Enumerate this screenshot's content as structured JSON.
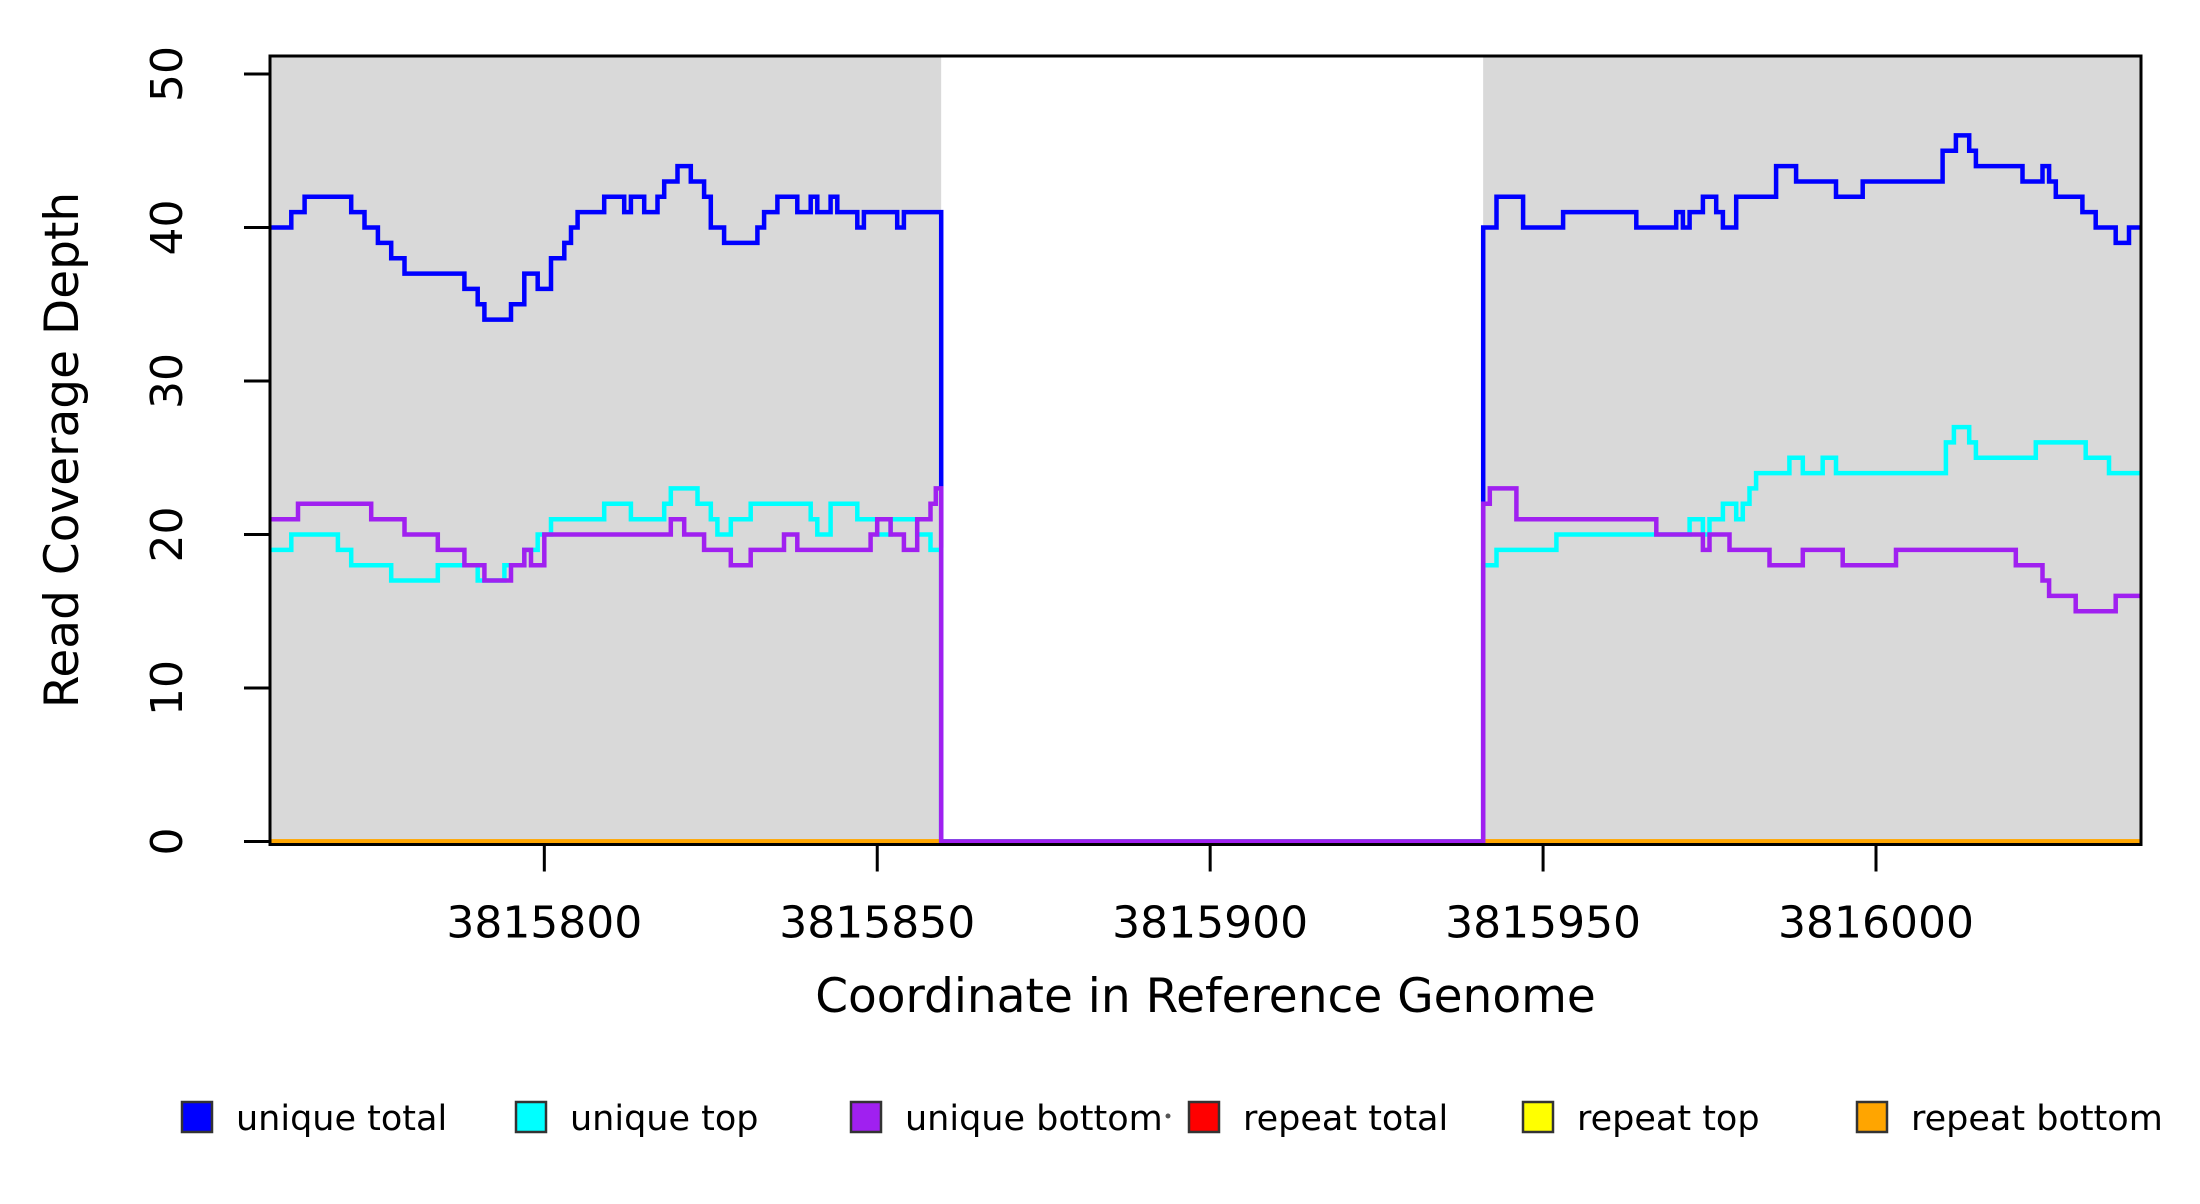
{
  "chart_data": {
    "type": "line",
    "subtype": "step-after",
    "title": "",
    "xlabel": "Coordinate in Reference Genome",
    "ylabel": "Read Coverage Depth",
    "xlim": [
      3815758.8,
      3816039.8
    ],
    "ylim": [
      0,
      50
    ],
    "grid": false,
    "x_ticks": [
      3815800,
      3815850,
      3815900,
      3815950,
      3816000
    ],
    "x_tick_labels": [
      "3815800",
      "3815850",
      "3815900",
      "3815950",
      "3816000"
    ],
    "y_ticks": [
      0,
      10,
      20,
      30,
      40,
      50
    ],
    "y_tick_labels": [
      "0",
      "10",
      "20",
      "30",
      "40",
      "50"
    ],
    "shaded_regions": [
      {
        "x0": 3815758.8,
        "x1": 3815859.6,
        "color": "#D9D9D9"
      },
      {
        "x0": 3815941.0,
        "x1": 3816039.8,
        "color": "#D9D9D9"
      }
    ],
    "gap_region": {
      "x0": 3815859.6,
      "x1": 3815941.0,
      "note": "unique coverage drops to 0 (unshaded repeat interval)"
    },
    "series": [
      {
        "name": "repeat total",
        "color": "#FF0000",
        "steps": [
          [
            3815758.8,
            0
          ]
        ],
        "xend": 3816039.8
      },
      {
        "name": "repeat top",
        "color": "#FFFF00",
        "steps": [
          [
            3815758.8,
            0
          ]
        ],
        "xend": 3816039.8
      },
      {
        "name": "repeat bottom",
        "color": "#FFA500",
        "steps": [
          [
            3815758.8,
            0
          ]
        ],
        "xend": 3816039.8
      },
      {
        "name": "unique total",
        "color": "#0000FF",
        "steps": [
          [
            3815758.8,
            40
          ],
          [
            3815762,
            41
          ],
          [
            3815764,
            42
          ],
          [
            3815771,
            41
          ],
          [
            3815773,
            40
          ],
          [
            3815775,
            39
          ],
          [
            3815777,
            38
          ],
          [
            3815779,
            37
          ],
          [
            3815788,
            36
          ],
          [
            3815790,
            35
          ],
          [
            3815791,
            34
          ],
          [
            3815795,
            35
          ],
          [
            3815797,
            37
          ],
          [
            3815799,
            36
          ],
          [
            3815801,
            38
          ],
          [
            3815803,
            39
          ],
          [
            3815804,
            40
          ],
          [
            3815805,
            41
          ],
          [
            3815809,
            42
          ],
          [
            3815812,
            41
          ],
          [
            3815813,
            42
          ],
          [
            3815815,
            41
          ],
          [
            3815817,
            42
          ],
          [
            3815818,
            43
          ],
          [
            3815820,
            44
          ],
          [
            3815822,
            43
          ],
          [
            3815824,
            42
          ],
          [
            3815825,
            40
          ],
          [
            3815827,
            39
          ],
          [
            3815832,
            40
          ],
          [
            3815833,
            41
          ],
          [
            3815835,
            42
          ],
          [
            3815838,
            41
          ],
          [
            3815840,
            42
          ],
          [
            3815841,
            41
          ],
          [
            3815843,
            42
          ],
          [
            3815844,
            41
          ],
          [
            3815847,
            40
          ],
          [
            3815848,
            41
          ],
          [
            3815853,
            40
          ],
          [
            3815854,
            41
          ],
          [
            3815859.6,
            0
          ],
          [
            3815941,
            40
          ],
          [
            3815943,
            42
          ],
          [
            3815947,
            40
          ],
          [
            3815953,
            41
          ],
          [
            3815964,
            40
          ],
          [
            3815970,
            41
          ],
          [
            3815971,
            40
          ],
          [
            3815972,
            41
          ],
          [
            3815974,
            42
          ],
          [
            3815976,
            41
          ],
          [
            3815977,
            40
          ],
          [
            3815979,
            42
          ],
          [
            3815985,
            44
          ],
          [
            3815988,
            43
          ],
          [
            3815994,
            42
          ],
          [
            3815998,
            43
          ],
          [
            3816010,
            45
          ],
          [
            3816012,
            46
          ],
          [
            3816014,
            45
          ],
          [
            3816015,
            44
          ],
          [
            3816022,
            43
          ],
          [
            3816025,
            44
          ],
          [
            3816026,
            43
          ],
          [
            3816027,
            42
          ],
          [
            3816031,
            41
          ],
          [
            3816033,
            40
          ],
          [
            3816036,
            39
          ],
          [
            3816038,
            40
          ]
        ],
        "xend": 3816039.8
      },
      {
        "name": "unique top",
        "color": "#00FFFF",
        "steps": [
          [
            3815758.8,
            19
          ],
          [
            3815762,
            20
          ],
          [
            3815769,
            19
          ],
          [
            3815771,
            18
          ],
          [
            3815777,
            17
          ],
          [
            3815784,
            18
          ],
          [
            3815790,
            17
          ],
          [
            3815794,
            18
          ],
          [
            3815797,
            19
          ],
          [
            3815799,
            20
          ],
          [
            3815801,
            21
          ],
          [
            3815809,
            22
          ],
          [
            3815813,
            21
          ],
          [
            3815818,
            22
          ],
          [
            3815819,
            23
          ],
          [
            3815823,
            22
          ],
          [
            3815825,
            21
          ],
          [
            3815826,
            20
          ],
          [
            3815828,
            21
          ],
          [
            3815831,
            22
          ],
          [
            3815840,
            21
          ],
          [
            3815841,
            20
          ],
          [
            3815843,
            22
          ],
          [
            3815847,
            21
          ],
          [
            3815850,
            20
          ],
          [
            3815852,
            21
          ],
          [
            3815856,
            20
          ],
          [
            3815858,
            19
          ],
          [
            3815859.6,
            0
          ],
          [
            3815941,
            18
          ],
          [
            3815943,
            19
          ],
          [
            3815952,
            20
          ],
          [
            3815972,
            21
          ],
          [
            3815974,
            20
          ],
          [
            3815975,
            21
          ],
          [
            3815977,
            22
          ],
          [
            3815979,
            21
          ],
          [
            3815980,
            22
          ],
          [
            3815981,
            23
          ],
          [
            3815982,
            24
          ],
          [
            3815987,
            25
          ],
          [
            3815989,
            24
          ],
          [
            3815992,
            25
          ],
          [
            3815994,
            24
          ],
          [
            3816010.5,
            26
          ],
          [
            3816011.7,
            27
          ],
          [
            3816014,
            26
          ],
          [
            3816015,
            25
          ],
          [
            3816024,
            26
          ],
          [
            3816031.5,
            25
          ],
          [
            3816035,
            24
          ]
        ],
        "xend": 3816039.8
      },
      {
        "name": "unique bottom",
        "color": "#A020F0",
        "steps": [
          [
            3815758.8,
            21
          ],
          [
            3815763,
            22
          ],
          [
            3815774,
            21
          ],
          [
            3815779,
            20
          ],
          [
            3815784,
            19
          ],
          [
            3815788,
            18
          ],
          [
            3815791,
            17
          ],
          [
            3815795,
            18
          ],
          [
            3815797,
            19
          ],
          [
            3815798,
            18
          ],
          [
            3815800,
            20
          ],
          [
            3815819,
            21
          ],
          [
            3815821,
            20
          ],
          [
            3815824,
            19
          ],
          [
            3815828,
            18
          ],
          [
            3815831,
            19
          ],
          [
            3815836,
            20
          ],
          [
            3815838,
            19
          ],
          [
            3815849,
            20
          ],
          [
            3815850,
            21
          ],
          [
            3815852,
            20
          ],
          [
            3815854,
            19
          ],
          [
            3815856,
            21
          ],
          [
            3815858,
            22
          ],
          [
            3815858.8,
            23
          ],
          [
            3815859.6,
            0
          ],
          [
            3815941,
            22
          ],
          [
            3815942,
            23
          ],
          [
            3815946,
            21
          ],
          [
            3815967,
            20
          ],
          [
            3815974,
            19
          ],
          [
            3815975,
            20
          ],
          [
            3815978,
            19
          ],
          [
            3815984,
            18
          ],
          [
            3815989,
            19
          ],
          [
            3815995,
            18
          ],
          [
            3816003,
            19
          ],
          [
            3816021,
            18
          ],
          [
            3816025,
            17
          ],
          [
            3816026,
            16
          ],
          [
            3816030,
            15
          ],
          [
            3816036,
            16
          ]
        ],
        "xend": 3816039.8
      }
    ],
    "legend": {
      "position": "bottom",
      "entries": [
        {
          "label": "unique total",
          "color": "#0000FF"
        },
        {
          "label": "unique top",
          "color": "#00FFFF"
        },
        {
          "label": "unique bottom",
          "color": "#A020F0"
        },
        {
          "label": "repeat total",
          "color": "#FF0000"
        },
        {
          "label": "repeat top",
          "color": "#FFFF00"
        },
        {
          "label": "repeat bottom",
          "color": "#FFA500"
        }
      ]
    }
  },
  "colors": {
    "background": "#FFFFFF",
    "shading": "#D9D9D9",
    "axis": "#000000",
    "legend_box_border": "#333333"
  }
}
